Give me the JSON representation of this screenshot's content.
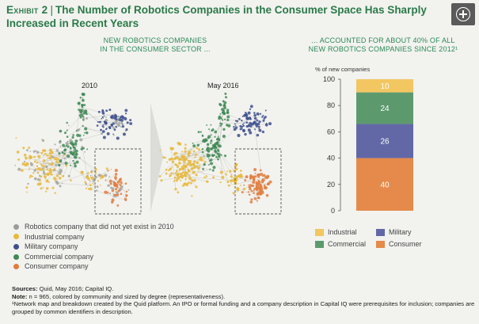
{
  "header": {
    "exhibit": "Exhibit 2",
    "title": "The Number of Robotics Companies in the Consumer Space Has Sharply Increased in Recent Years"
  },
  "left_heading": [
    "NEW ROBOTICS COMPANIES",
    "IN THE CONSUMER SECTOR ..."
  ],
  "right_heading": [
    "... ACCOUNTED FOR ABOUT 40% OF ALL",
    "NEW ROBOTICS COMPANIES SINCE 2012¹"
  ],
  "maps": {
    "left_label": "2010",
    "right_label": "May 2016"
  },
  "network_legend": [
    {
      "label": "Robotics company that did not yet exist in 2010",
      "color": "#9c9c9c"
    },
    {
      "label": "Industrial company",
      "color": "#e8b93a"
    },
    {
      "label": "Military company",
      "color": "#3d4f8c"
    },
    {
      "label": "Commercial company",
      "color": "#3f8a55"
    },
    {
      "label": "Consumer company",
      "color": "#e27c3c"
    }
  ],
  "chart_data": {
    "type": "bar",
    "stacked": true,
    "ylabel": "% of new companies",
    "ylim": [
      0,
      100
    ],
    "yticks": [
      0,
      20,
      40,
      60,
      80,
      100
    ],
    "categories": [
      ""
    ],
    "series": [
      {
        "name": "Consumer",
        "values": [
          40
        ],
        "color": "#e58a4a"
      },
      {
        "name": "Military",
        "values": [
          26
        ],
        "color": "#6268a6"
      },
      {
        "name": "Commercial",
        "values": [
          24
        ],
        "color": "#5c9a6e"
      },
      {
        "name": "Industrial",
        "values": [
          10
        ],
        "color": "#f2c661"
      }
    ],
    "legend": [
      [
        "Industrial",
        "Military"
      ],
      [
        "Commercial",
        "Consumer"
      ]
    ],
    "legend_position": "bottom"
  },
  "footnotes": {
    "sources_label": "Sources:",
    "sources": "Quid, May 2016; Capital IQ.",
    "note_label": "Note:",
    "note": "n = 965, colored by community and sized by degree (representativeness).",
    "footnote1": "¹Network map and breakdown created by the Quid platform. An IPO or formal funding and a company description in Capital IQ were prerequisites for inclusion; companies are grouped by common identifiers in description."
  }
}
